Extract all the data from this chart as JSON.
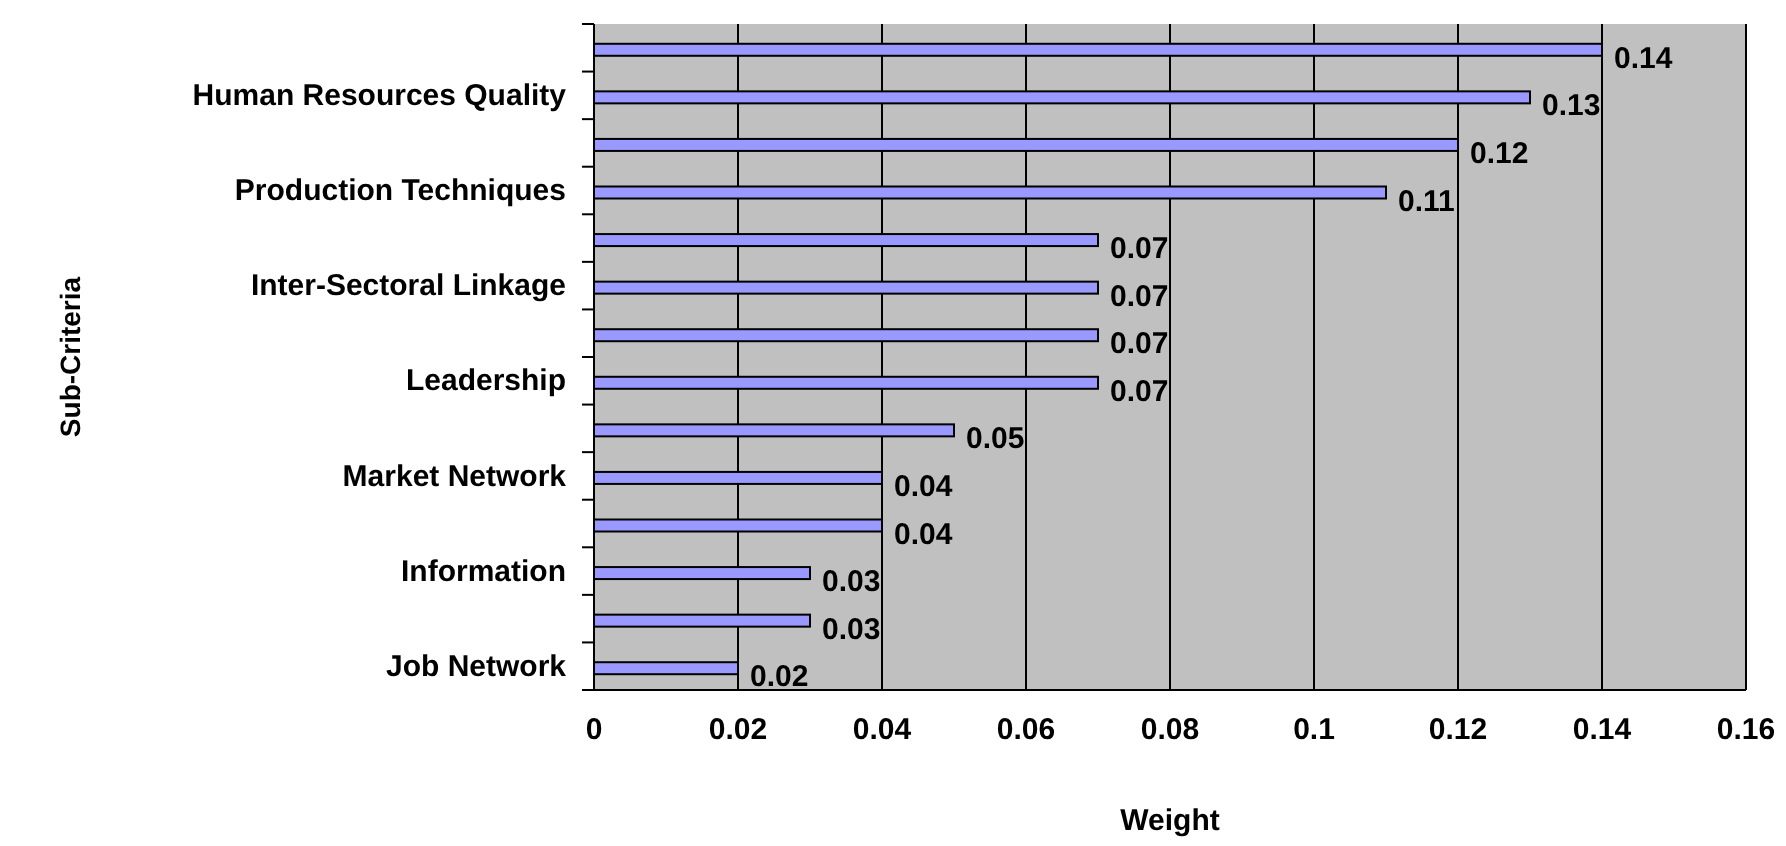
{
  "chart_data": {
    "type": "bar",
    "orientation": "horizontal",
    "xlabel": "Weight",
    "ylabel": "Sub-Criteria",
    "categories": [
      null,
      "Human Resources Quality",
      null,
      "Production Techniques",
      null,
      "Inter-Sectoral Linkage",
      null,
      "Leadership",
      null,
      "Market Network",
      null,
      "Information",
      null,
      "Job Network"
    ],
    "values": [
      0.14,
      0.13,
      0.12,
      0.11,
      0.07,
      0.07,
      0.07,
      0.07,
      0.05,
      0.04,
      0.04,
      0.03,
      0.03,
      0.02
    ],
    "color": "#9999ff",
    "xlim": [
      0,
      0.16
    ],
    "xticks": [
      0,
      0.02,
      0.04,
      0.06,
      0.08,
      0.1,
      0.12,
      0.14,
      0.16
    ],
    "grid": "x",
    "data_labels": true
  }
}
